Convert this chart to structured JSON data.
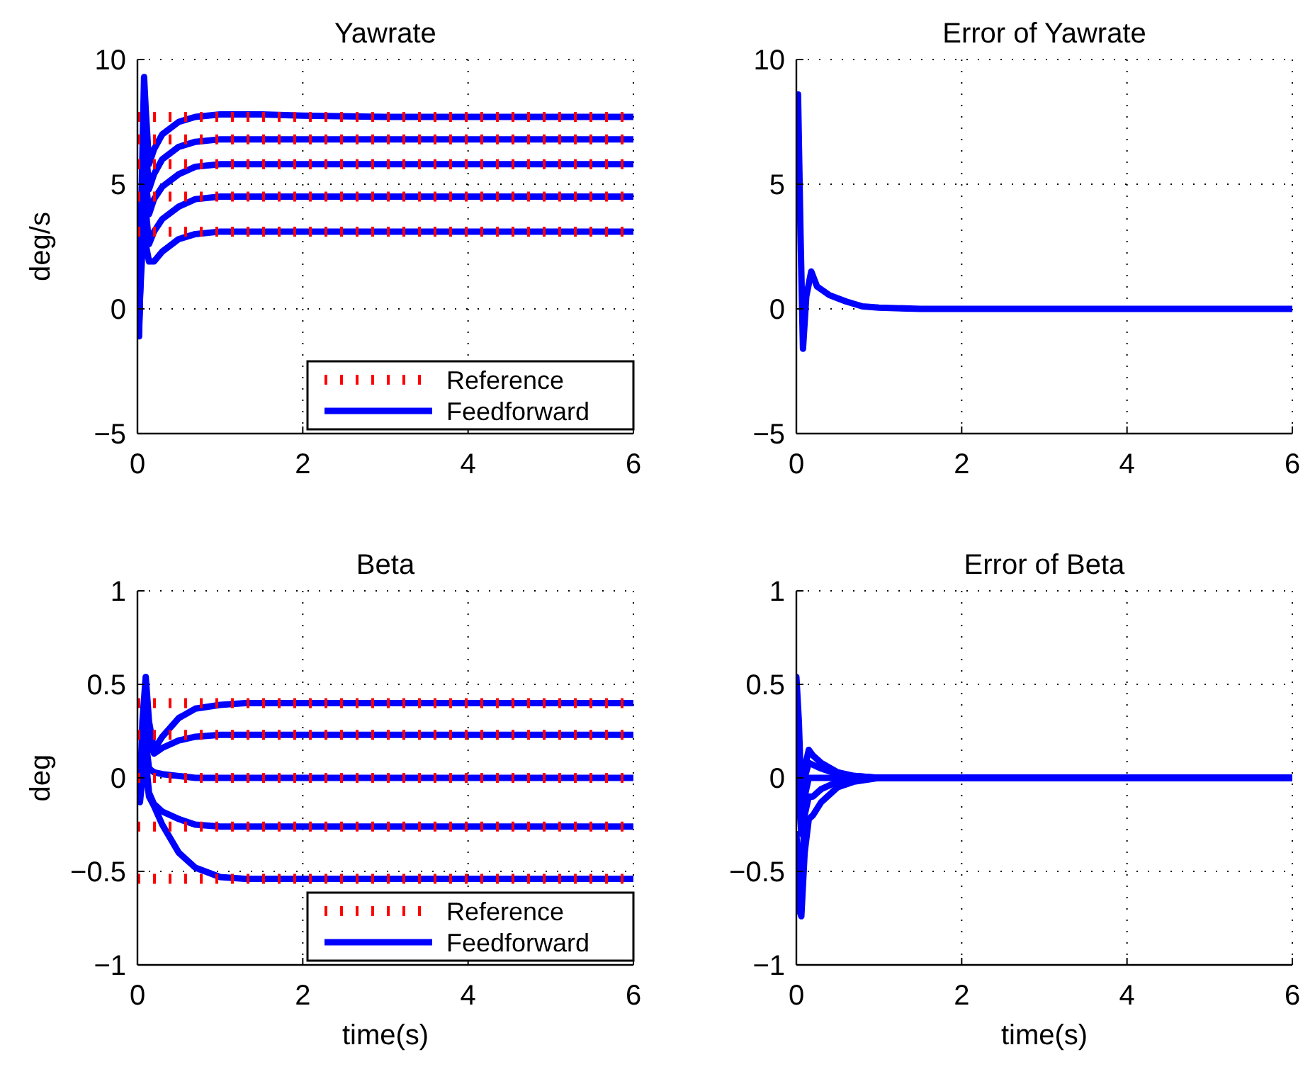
{
  "chart_data": [
    {
      "type": "line",
      "title": "Yawrate",
      "ylabel": "deg/s",
      "xlim": [
        0,
        6
      ],
      "ylim": [
        -5,
        10
      ],
      "xticks": [
        0,
        2,
        4,
        6
      ],
      "yticks": [
        {
          "value": -5,
          "label": "−5"
        },
        0,
        5,
        10
      ],
      "grid": true,
      "legend": "bottom right",
      "series": [
        {
          "name": "Reference",
          "color": "#ff0000",
          "line_style": "dotted",
          "x": [
            0,
            6
          ],
          "values": [
            7.7,
            7.7
          ]
        },
        {
          "color": "#ff0000",
          "line_style": "dotted",
          "x": [
            0,
            6
          ],
          "values": [
            6.8,
            6.8
          ]
        },
        {
          "color": "#ff0000",
          "line_style": "dotted",
          "x": [
            0,
            6
          ],
          "values": [
            5.8,
            5.8
          ]
        },
        {
          "color": "#ff0000",
          "line_style": "dotted",
          "x": [
            0,
            6
          ],
          "values": [
            4.5,
            4.5
          ]
        },
        {
          "color": "#ff0000",
          "line_style": "dotted",
          "x": [
            0,
            6
          ],
          "values": [
            3.1,
            3.1
          ]
        },
        {
          "name": "Feedforward",
          "color": "#0000ff",
          "line_style": "solid",
          "x": [
            0,
            0.02,
            0.04,
            0.08,
            0.1,
            0.14,
            0.2,
            0.3,
            0.5,
            0.7,
            1,
            1.5,
            2,
            3,
            4,
            6
          ],
          "values": [
            0,
            -1.1,
            3,
            9.3,
            8,
            5.8,
            6.4,
            7,
            7.5,
            7.7,
            7.8,
            7.8,
            7.75,
            7.7,
            7.7,
            7.7
          ]
        },
        {
          "color": "#0000ff",
          "line_style": "solid",
          "x": [
            0,
            0.02,
            0.04,
            0.08,
            0.1,
            0.14,
            0.2,
            0.3,
            0.5,
            0.7,
            1,
            1.5,
            2,
            3,
            4,
            6
          ],
          "values": [
            0,
            -0.9,
            2.5,
            8,
            6.5,
            4.8,
            5.4,
            6,
            6.5,
            6.7,
            6.8,
            6.8,
            6.8,
            6.8,
            6.8,
            6.8
          ]
        },
        {
          "color": "#0000ff",
          "line_style": "solid",
          "x": [
            0,
            0.02,
            0.04,
            0.08,
            0.1,
            0.14,
            0.2,
            0.3,
            0.5,
            0.7,
            1,
            1.5,
            2,
            3,
            4,
            6
          ],
          "values": [
            0,
            -0.8,
            2,
            6.8,
            5.2,
            3.8,
            4.4,
            4.9,
            5.4,
            5.7,
            5.8,
            5.8,
            5.8,
            5.8,
            5.8,
            5.8
          ]
        },
        {
          "color": "#0000ff",
          "line_style": "solid",
          "x": [
            0,
            0.02,
            0.04,
            0.08,
            0.1,
            0.14,
            0.2,
            0.3,
            0.5,
            0.7,
            1,
            1.5,
            2,
            3,
            4,
            6
          ],
          "values": [
            0,
            -0.6,
            1.6,
            5.4,
            4,
            2.6,
            3.1,
            3.6,
            4.1,
            4.4,
            4.5,
            4.5,
            4.5,
            4.5,
            4.5,
            4.5
          ]
        },
        {
          "color": "#0000ff",
          "line_style": "solid",
          "x": [
            0,
            0.02,
            0.04,
            0.08,
            0.1,
            0.14,
            0.2,
            0.3,
            0.5,
            0.7,
            1,
            1.5,
            2,
            3,
            4,
            6
          ],
          "values": [
            0,
            -0.4,
            1.1,
            3.7,
            2.6,
            1.9,
            1.9,
            2.3,
            2.8,
            3,
            3.1,
            3.1,
            3.1,
            3.1,
            3.1,
            3.1
          ]
        }
      ]
    },
    {
      "type": "line",
      "title": "Error of Yawrate",
      "xlim": [
        0,
        6
      ],
      "ylim": [
        -5,
        10
      ],
      "xticks": [
        0,
        2,
        4,
        6
      ],
      "yticks": [
        {
          "value": -5,
          "label": "−5"
        },
        0,
        5,
        10
      ],
      "grid": true,
      "series": [
        {
          "color": "#0000ff",
          "line_style": "solid",
          "x": [
            0,
            0.02,
            0.05,
            0.08,
            0.12,
            0.18,
            0.25,
            0.4,
            0.6,
            0.8,
            1,
            1.5,
            2,
            3,
            6
          ],
          "values": [
            7.7,
            8.6,
            3,
            -1.6,
            0.5,
            1.5,
            0.9,
            0.55,
            0.3,
            0.1,
            0.05,
            0,
            0,
            0,
            0
          ]
        }
      ]
    },
    {
      "type": "line",
      "title": "Beta",
      "ylabel": "deg",
      "xlabel": "time(s)",
      "xlim": [
        0,
        6
      ],
      "ylim": [
        -1,
        1
      ],
      "xticks": [
        0,
        2,
        4,
        6
      ],
      "yticks": [
        {
          "value": -1,
          "label": "−1"
        },
        {
          "value": -0.5,
          "label": "−0.5"
        },
        0,
        0.5,
        1
      ],
      "grid": true,
      "legend": "bottom right",
      "series": [
        {
          "name": "Reference",
          "color": "#ff0000",
          "line_style": "dotted",
          "x": [
            0,
            6
          ],
          "values": [
            0.4,
            0.4
          ]
        },
        {
          "color": "#ff0000",
          "line_style": "dotted",
          "x": [
            0,
            6
          ],
          "values": [
            0.23,
            0.23
          ]
        },
        {
          "color": "#ff0000",
          "line_style": "dotted",
          "x": [
            0,
            6
          ],
          "values": [
            0,
            0
          ]
        },
        {
          "color": "#ff0000",
          "line_style": "dotted",
          "x": [
            0,
            6
          ],
          "values": [
            -0.26,
            -0.26
          ]
        },
        {
          "color": "#ff0000",
          "line_style": "dotted",
          "x": [
            0,
            6
          ],
          "values": [
            -0.54,
            -0.54
          ]
        },
        {
          "name": "Feedforward",
          "color": "#0000ff",
          "line_style": "solid",
          "x": [
            0,
            0.03,
            0.06,
            0.1,
            0.14,
            0.2,
            0.3,
            0.5,
            0.7,
            1,
            1.3,
            1.5,
            2,
            3,
            6
          ],
          "values": [
            0,
            -0.1,
            0.3,
            0.54,
            0.3,
            0.15,
            0.22,
            0.32,
            0.37,
            0.39,
            0.4,
            0.4,
            0.4,
            0.4,
            0.4
          ]
        },
        {
          "color": "#0000ff",
          "line_style": "solid",
          "x": [
            0,
            0.03,
            0.06,
            0.1,
            0.14,
            0.2,
            0.3,
            0.5,
            0.7,
            1,
            1.3,
            1.5,
            2,
            3,
            6
          ],
          "values": [
            0,
            -0.08,
            0.2,
            0.4,
            0.2,
            0.13,
            0.16,
            0.2,
            0.22,
            0.23,
            0.23,
            0.23,
            0.23,
            0.23,
            0.23
          ]
        },
        {
          "color": "#0000ff",
          "line_style": "solid",
          "x": [
            0,
            0.03,
            0.06,
            0.1,
            0.14,
            0.2,
            0.3,
            0.5,
            0.7,
            1,
            1.3,
            1.5,
            2,
            3,
            6
          ],
          "values": [
            0,
            -0.05,
            0.1,
            0.2,
            0.05,
            0.03,
            0.02,
            0.01,
            0,
            0,
            0,
            0,
            0,
            0,
            0
          ]
        },
        {
          "color": "#0000ff",
          "line_style": "solid",
          "x": [
            0,
            0.03,
            0.06,
            0.1,
            0.14,
            0.2,
            0.3,
            0.5,
            0.7,
            1,
            1.3,
            1.5,
            2,
            3,
            6
          ],
          "values": [
            0,
            -0.1,
            0,
            0.1,
            -0.08,
            -0.14,
            -0.18,
            -0.22,
            -0.25,
            -0.26,
            -0.26,
            -0.26,
            -0.26,
            -0.26,
            -0.26
          ]
        },
        {
          "color": "#0000ff",
          "line_style": "solid",
          "x": [
            0,
            0.03,
            0.06,
            0.1,
            0.14,
            0.2,
            0.3,
            0.5,
            0.7,
            1,
            1.3,
            1.5,
            2,
            3,
            6
          ],
          "values": [
            0,
            -0.13,
            0,
            0.05,
            -0.1,
            -0.15,
            -0.25,
            -0.4,
            -0.48,
            -0.53,
            -0.54,
            -0.54,
            -0.54,
            -0.54,
            -0.54
          ]
        }
      ]
    },
    {
      "type": "line",
      "title": "Error of Beta",
      "xlabel": "time(s)",
      "xlim": [
        0,
        6
      ],
      "ylim": [
        -1,
        1
      ],
      "xticks": [
        0,
        2,
        4,
        6
      ],
      "yticks": [
        {
          "value": -1,
          "label": "−1"
        },
        {
          "value": -0.5,
          "label": "−0.5"
        },
        0,
        0.5,
        1
      ],
      "grid": true,
      "series": [
        {
          "color": "#0000ff",
          "line_style": "solid",
          "x": [
            0,
            0.03,
            0.06,
            0.1,
            0.15,
            0.2,
            0.3,
            0.5,
            0.7,
            1,
            2,
            6
          ],
          "values": [
            0.54,
            0.3,
            -0.1,
            0.05,
            0.15,
            0.12,
            0.08,
            0.03,
            0.01,
            0,
            0,
            0
          ]
        },
        {
          "color": "#0000ff",
          "line_style": "solid",
          "x": [
            0,
            0.03,
            0.06,
            0.1,
            0.15,
            0.2,
            0.3,
            0.5,
            0.7,
            1,
            2,
            6
          ],
          "values": [
            0.3,
            0.2,
            -0.2,
            0,
            0.08,
            0.07,
            0.05,
            0.02,
            0.01,
            0,
            0,
            0
          ]
        },
        {
          "color": "#0000ff",
          "line_style": "solid",
          "x": [
            0,
            0.03,
            0.06,
            0.1,
            0.15,
            0.2,
            0.3,
            0.5,
            0.7,
            1,
            2,
            6
          ],
          "values": [
            0,
            -0.1,
            -0.3,
            -0.1,
            0,
            0,
            0,
            0,
            0,
            0,
            0,
            0
          ]
        },
        {
          "color": "#0000ff",
          "line_style": "solid",
          "x": [
            0,
            0.03,
            0.06,
            0.1,
            0.15,
            0.2,
            0.3,
            0.5,
            0.7,
            1,
            2,
            6
          ],
          "values": [
            -0.3,
            -0.5,
            -0.6,
            -0.2,
            -0.1,
            -0.1,
            -0.06,
            -0.02,
            -0.01,
            0,
            0,
            0
          ]
        },
        {
          "color": "#0000ff",
          "line_style": "solid",
          "x": [
            0,
            0.03,
            0.06,
            0.1,
            0.15,
            0.2,
            0.3,
            0.5,
            0.7,
            1,
            2,
            6
          ],
          "values": [
            -0.54,
            -0.7,
            -0.74,
            -0.4,
            -0.22,
            -0.2,
            -0.13,
            -0.05,
            -0.02,
            0,
            0,
            0
          ]
        }
      ]
    }
  ]
}
